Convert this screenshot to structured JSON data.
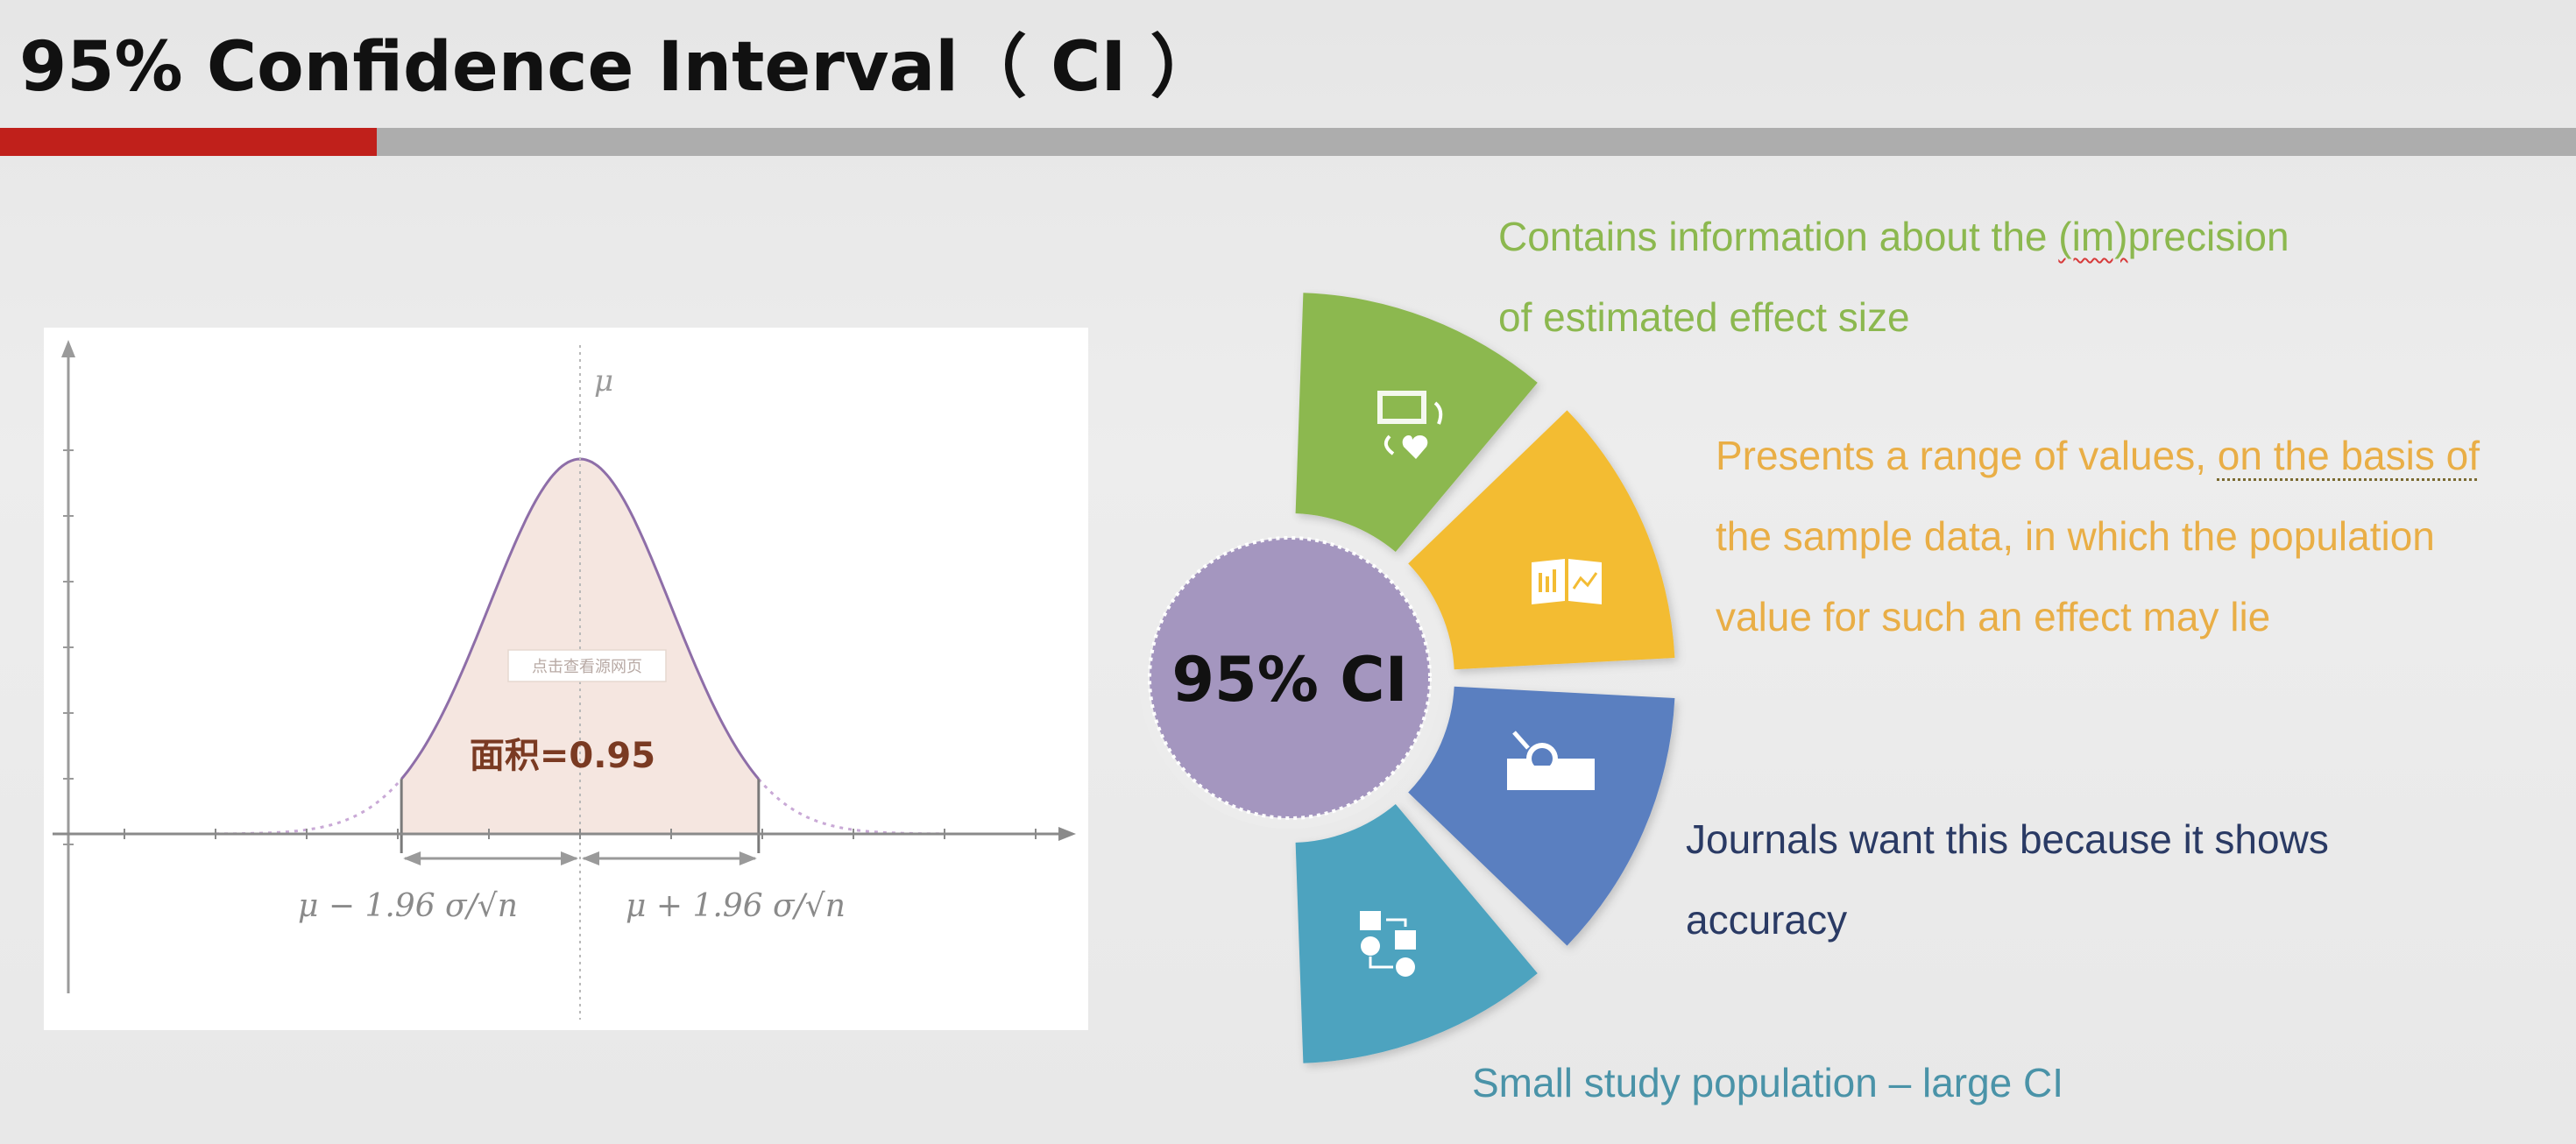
{
  "slide": {
    "title": "95% Confidence Interval（ CI ）",
    "accent_color": "#c0201b"
  },
  "chart_data": {
    "type": "area",
    "distribution": "normal",
    "mean_label": "μ",
    "lower_bound_label": "μ − 1.96 σ/√n",
    "upper_bound_label": "μ + 1.96 σ/√n",
    "area_label": "面积=0.95",
    "watermark": "点击查看源网页",
    "shaded_z_range": [
      -1.96,
      1.96
    ],
    "x_range_z": [
      -4,
      4
    ],
    "shaded_fill": "#f5e6e0",
    "curve_color": "#8e6ea8"
  },
  "fan": {
    "center_label": "95% CI",
    "center_color": "#a496bf",
    "segments": [
      {
        "icon": "screen-heart-icon",
        "color": "#8cb84f"
      },
      {
        "icon": "book-chart-icon",
        "color": "#f3bc33"
      },
      {
        "icon": "magnifier-box-icon",
        "color": "#5a7fc0"
      },
      {
        "icon": "flow-diagram-icon",
        "color": "#4ea3bf"
      }
    ]
  },
  "callouts": {
    "c1": {
      "pre": "Contains information about the ",
      "mark": "(im)",
      "post": "precision",
      "line2": "of estimated effect size"
    },
    "c2": {
      "line1_pre": "Presents a range of values, ",
      "line1_mark": "on the basis of",
      "line2": "the sample data, in which the population",
      "line3": "value for such an effect may lie"
    },
    "c3": {
      "line1": "Journals want this because it shows",
      "line2": "accuracy"
    },
    "c4": {
      "line1": "Small study population – large CI"
    }
  }
}
